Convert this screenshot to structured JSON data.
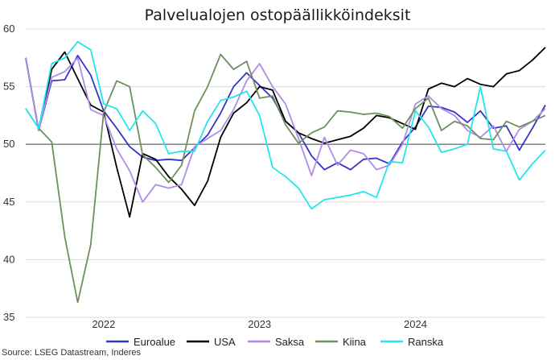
{
  "chart_data": {
    "type": "line",
    "title": "Palvelualojen ostopäällikköindeksit",
    "source": "Source: LSEG Datastream, Inderes",
    "xlabel": "",
    "ylabel": "",
    "ylim": [
      35,
      60
    ],
    "yticks": [
      "35",
      "40",
      "45",
      "50",
      "55",
      "60"
    ],
    "reference_line": 50,
    "grid": true,
    "legend_position": "bottom",
    "x": [
      "2021-07",
      "2021-08",
      "2021-09",
      "2021-10",
      "2021-11",
      "2021-12",
      "2022-01",
      "2022-02",
      "2022-03",
      "2022-04",
      "2022-05",
      "2022-06",
      "2022-07",
      "2022-08",
      "2022-09",
      "2022-10",
      "2022-11",
      "2022-12",
      "2023-01",
      "2023-02",
      "2023-03",
      "2023-04",
      "2023-05",
      "2023-06",
      "2023-07",
      "2023-08",
      "2023-09",
      "2023-10",
      "2023-11",
      "2023-12",
      "2024-01",
      "2024-02",
      "2024-03",
      "2024-04",
      "2024-05",
      "2024-06",
      "2024-07",
      "2024-08",
      "2024-09",
      "2024-10",
      "2024-11"
    ],
    "xticks": [
      {
        "label": "2022",
        "at": "2022-01"
      },
      {
        "label": "2023",
        "at": "2023-01"
      },
      {
        "label": "2024",
        "at": "2024-01"
      }
    ],
    "series": [
      {
        "name": "Euroalue",
        "color": "#3535c8",
        "values": [
          57.5,
          51.2,
          55.5,
          55.6,
          57.7,
          56.0,
          52.9,
          51.4,
          49.8,
          48.9,
          48.6,
          48.7,
          48.6,
          49.7,
          50.8,
          52.7,
          55.0,
          56.2,
          55.1,
          54.0,
          52.0,
          51.0,
          49.0,
          47.8,
          48.4,
          47.8,
          48.7,
          48.8,
          48.3,
          50.2,
          51.5,
          53.3,
          53.2,
          52.8,
          51.9,
          52.9,
          51.4,
          51.6,
          49.5,
          51.4,
          53.4
        ]
      },
      {
        "name": "USA",
        "color": "#000000",
        "values": [
          57.5,
          51.2,
          56.5,
          58.0,
          55.7,
          53.4,
          52.8,
          48.0,
          43.7,
          49.2,
          48.7,
          47.2,
          46.1,
          44.7,
          46.8,
          50.6,
          52.7,
          53.6,
          55.0,
          54.7,
          52.0,
          51.0,
          50.5,
          50.1,
          50.4,
          50.7,
          51.4,
          52.5,
          52.3,
          51.8,
          51.3,
          54.8,
          55.3,
          55.0,
          55.7,
          55.2,
          55.0,
          56.1,
          56.4,
          57.3,
          58.4
        ]
      },
      {
        "name": "Saksa",
        "color": "#b08ce8",
        "values": [
          57.5,
          51.2,
          55.8,
          56.3,
          57.5,
          53.0,
          52.5,
          49.6,
          47.7,
          45.0,
          46.5,
          46.2,
          46.5,
          49.8,
          50.5,
          51.2,
          53.0,
          55.5,
          57.0,
          55.0,
          53.5,
          50.5,
          47.3,
          50.6,
          48.2,
          49.5,
          49.2,
          47.8,
          48.2,
          50.0,
          53.5,
          54.2,
          53.1,
          52.5,
          51.2,
          50.6,
          51.6,
          49.4,
          51.3,
          52.0,
          53.1
        ]
      },
      {
        "name": "Kiina",
        "color": "#6e8f5e",
        "values": [
          53.1,
          51.4,
          50.2,
          42.0,
          36.3,
          41.3,
          52.8,
          55.5,
          55.0,
          49.1,
          48.0,
          46.7,
          48.2,
          52.9,
          55.0,
          57.8,
          56.5,
          57.2,
          54.0,
          54.2,
          51.7,
          50.1,
          51.0,
          51.5,
          52.9,
          52.8,
          52.6,
          52.7,
          52.4,
          51.4,
          53.1,
          54.0,
          51.2,
          52.0,
          51.6,
          50.5,
          50.4,
          52.0,
          51.5,
          52.0,
          52.5
        ]
      },
      {
        "name": "Ranska",
        "color": "#23e6ea",
        "values": [
          53.1,
          51.4,
          57.0,
          57.5,
          58.9,
          58.2,
          53.5,
          53.1,
          51.2,
          52.9,
          51.8,
          49.2,
          49.4,
          49.4,
          52.0,
          53.8,
          54.1,
          54.6,
          52.5,
          48.0,
          47.2,
          46.2,
          44.4,
          45.2,
          45.4,
          45.6,
          45.9,
          45.4,
          48.5,
          48.4,
          52.9,
          51.5,
          49.3,
          49.6,
          50.0,
          55.0,
          49.6,
          49.4,
          46.9,
          48.3,
          49.5
        ]
      }
    ]
  }
}
